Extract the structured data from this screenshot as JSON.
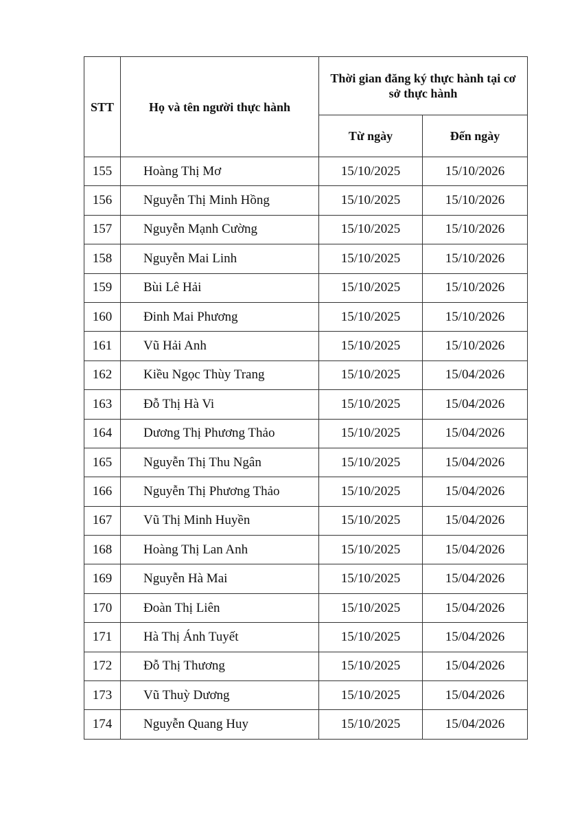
{
  "table": {
    "headers": {
      "stt": "STT",
      "name": "Họ và tên người thực hành",
      "period": "Thời gian đăng ký thực hành tại cơ sở thực hành",
      "from": "Từ ngày",
      "to": "Đến ngày"
    },
    "rows": [
      {
        "stt": "155",
        "name": "Hoàng Thị Mơ",
        "from": "15/10/2025",
        "to": "15/10/2026"
      },
      {
        "stt": "156",
        "name": "Nguyễn Thị Minh Hồng",
        "from": "15/10/2025",
        "to": "15/10/2026"
      },
      {
        "stt": "157",
        "name": "Nguyễn Mạnh Cường",
        "from": "15/10/2025",
        "to": "15/10/2026"
      },
      {
        "stt": "158",
        "name": "Nguyễn Mai Linh",
        "from": "15/10/2025",
        "to": "15/10/2026"
      },
      {
        "stt": "159",
        "name": "Bùi Lê Hải",
        "from": "15/10/2025",
        "to": "15/10/2026"
      },
      {
        "stt": "160",
        "name": "Đinh Mai Phương",
        "from": "15/10/2025",
        "to": "15/10/2026"
      },
      {
        "stt": "161",
        "name": "Vũ Hải Anh",
        "from": "15/10/2025",
        "to": "15/10/2026"
      },
      {
        "stt": "162",
        "name": "Kiều Ngọc Thùy Trang",
        "from": "15/10/2025",
        "to": "15/04/2026"
      },
      {
        "stt": "163",
        "name": "Đỗ Thị Hà Vi",
        "from": "15/10/2025",
        "to": "15/04/2026"
      },
      {
        "stt": "164",
        "name": "Dương Thị Phương Thảo",
        "from": "15/10/2025",
        "to": "15/04/2026"
      },
      {
        "stt": "165",
        "name": "Nguyễn Thị Thu Ngân",
        "from": "15/10/2025",
        "to": "15/04/2026"
      },
      {
        "stt": "166",
        "name": "Nguyễn Thị Phương Thảo",
        "from": "15/10/2025",
        "to": "15/04/2026"
      },
      {
        "stt": "167",
        "name": "Vũ Thị Minh Huyền",
        "from": "15/10/2025",
        "to": "15/04/2026"
      },
      {
        "stt": "168",
        "name": "Hoàng Thị Lan Anh",
        "from": "15/10/2025",
        "to": "15/04/2026"
      },
      {
        "stt": "169",
        "name": "Nguyễn Hà Mai",
        "from": "15/10/2025",
        "to": "15/04/2026"
      },
      {
        "stt": "170",
        "name": "Đoàn Thị Liên",
        "from": "15/10/2025",
        "to": "15/04/2026"
      },
      {
        "stt": "171",
        "name": "Hà Thị Ánh Tuyết",
        "from": "15/10/2025",
        "to": "15/04/2026"
      },
      {
        "stt": "172",
        "name": "Đỗ Thị Thương",
        "from": "15/10/2025",
        "to": "15/04/2026"
      },
      {
        "stt": "173",
        "name": "Vũ Thuỳ Dương",
        "from": "15/10/2025",
        "to": "15/04/2026"
      },
      {
        "stt": "174",
        "name": "Nguyễn Quang Huy",
        "from": "15/10/2025",
        "to": "15/04/2026"
      }
    ]
  }
}
